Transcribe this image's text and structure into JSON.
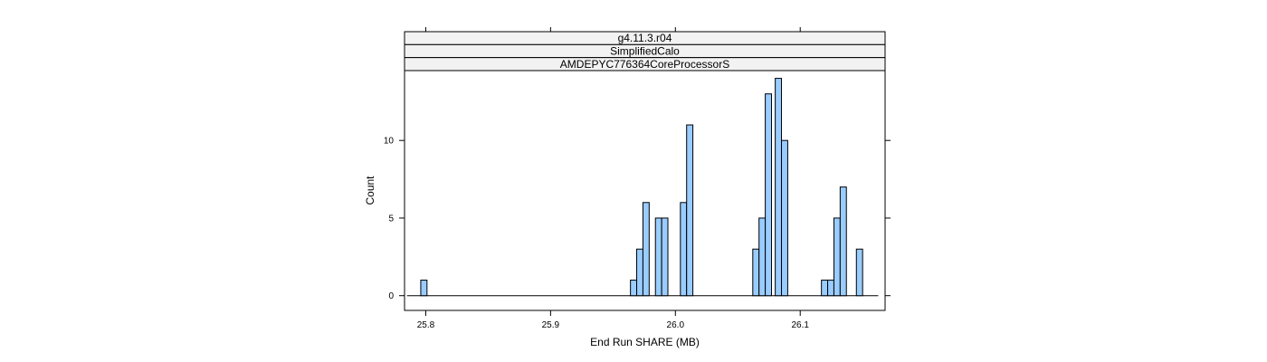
{
  "chart_data": {
    "type": "bar",
    "panel_strips": [
      "g4.11.3.r04",
      "SimplifiedCalo",
      "AMDEPYC776364CoreProcessorS"
    ],
    "xlabel": "End Run SHARE (MB)",
    "ylabel": "Count",
    "xlim": [
      25.783,
      26.168
    ],
    "ylim": [
      -0.95,
      14.5
    ],
    "x_ticks": [
      25.8,
      25.9,
      26.0,
      26.1
    ],
    "x_tick_labels": [
      "25.8",
      "25.9",
      "26.0",
      "26.1"
    ],
    "y_ticks": [
      0,
      5,
      10
    ],
    "y_tick_labels": [
      "0",
      "5",
      "10"
    ],
    "bin_width": 0.005,
    "x_range": [
      25.785,
      26.1625
    ],
    "bins": [
      {
        "x": 25.7985,
        "count": 1
      },
      {
        "x": 25.9665,
        "count": 1
      },
      {
        "x": 25.9715,
        "count": 3
      },
      {
        "x": 25.9765,
        "count": 6
      },
      {
        "x": 25.9865,
        "count": 5
      },
      {
        "x": 25.9915,
        "count": 5
      },
      {
        "x": 26.0065,
        "count": 6
      },
      {
        "x": 26.0115,
        "count": 11
      },
      {
        "x": 26.0645,
        "count": 3
      },
      {
        "x": 26.0695,
        "count": 5
      },
      {
        "x": 26.0745,
        "count": 13
      },
      {
        "x": 26.0825,
        "count": 14
      },
      {
        "x": 26.0875,
        "count": 10
      },
      {
        "x": 26.1195,
        "count": 1
      },
      {
        "x": 26.1245,
        "count": 1
      },
      {
        "x": 26.1295,
        "count": 5
      },
      {
        "x": 26.1345,
        "count": 7
      },
      {
        "x": 26.1475,
        "count": 3
      }
    ],
    "grid": false,
    "colors": {
      "bar_fill": "#99ccff",
      "strip_fill": "#f2f2f2",
      "outline": "#000000"
    }
  }
}
